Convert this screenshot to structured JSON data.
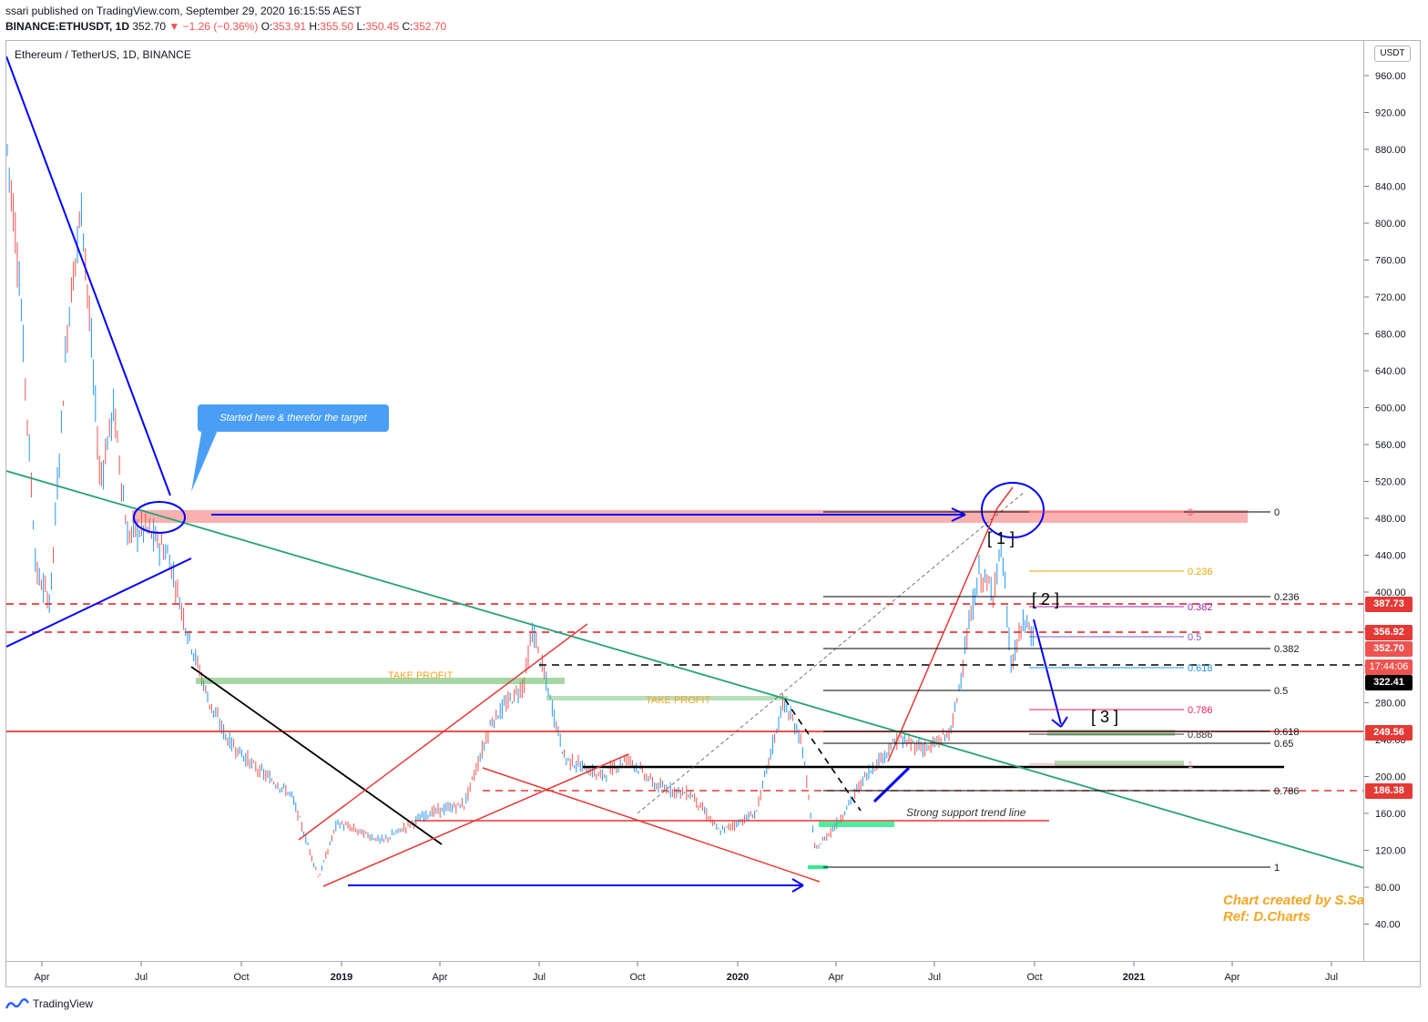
{
  "header": {
    "publisher": "ssari published on TradingView.com, September 29, 2020 16:15:55 AEST",
    "symbol": "BINANCE:ETHUSDT, 1D",
    "last": "352.70",
    "change": "▼ −1.26 (−0.36%)",
    "o_label": "O:",
    "o": "353.91",
    "h_label": "H:",
    "h": "355.50",
    "l_label": "L:",
    "l": "350.45",
    "c_label": "C:",
    "c": "352.70"
  },
  "chart": {
    "title": "Ethereum / TetherUS, 1D, BINANCE",
    "currency": "USDT",
    "price_ticks": [
      "960.00",
      "920.00",
      "880.00",
      "840.00",
      "800.00",
      "760.00",
      "720.00",
      "680.00",
      "640.00",
      "600.00",
      "560.00",
      "520.00",
      "480.00",
      "440.00",
      "400.00",
      "360.00",
      "320.00",
      "280.00",
      "240.00",
      "200.00",
      "160.00",
      "120.00",
      "80.00",
      "40.00"
    ],
    "time_ticks": [
      "Apr",
      "Jul",
      "Oct",
      "2019",
      "Apr",
      "Jul",
      "Oct",
      "2020",
      "Apr",
      "Jul",
      "Oct",
      "2021",
      "Apr",
      "Jul"
    ],
    "price_tags": {
      "t387": "387.73",
      "t356": "356.92",
      "t352": "352.70",
      "countdown": "17:44:06",
      "t322": "322.41",
      "t249": "249.56",
      "t186": "186.38"
    },
    "annotations": {
      "callout": "Started here & therefor the target",
      "take_profit_1": "TAKE PROFIT",
      "take_profit_2": "TAKE PROFIT",
      "support": "Strong support trend line",
      "wave1": "[ 1 ]",
      "wave2": "[ 2 ]",
      "wave3": "[ 3 ]",
      "credit_line1": "Chart created by S.Sa",
      "credit_line2": "Ref: D.Charts"
    },
    "fib_black": [
      "0",
      "0.236",
      "0.382",
      "0.5",
      "0.618",
      "0.65",
      "0.786",
      "1"
    ],
    "fib_color": [
      "0",
      "0.236",
      "0.382",
      "0.5",
      "0.618",
      "0.786",
      "0.886",
      "1"
    ],
    "colors": {
      "up": "#2196f3",
      "down": "#ef5350",
      "trend": "#0000ff",
      "red": "#e53935",
      "teal": "#26a17b"
    }
  },
  "footer": {
    "brand": "TradingView"
  }
}
